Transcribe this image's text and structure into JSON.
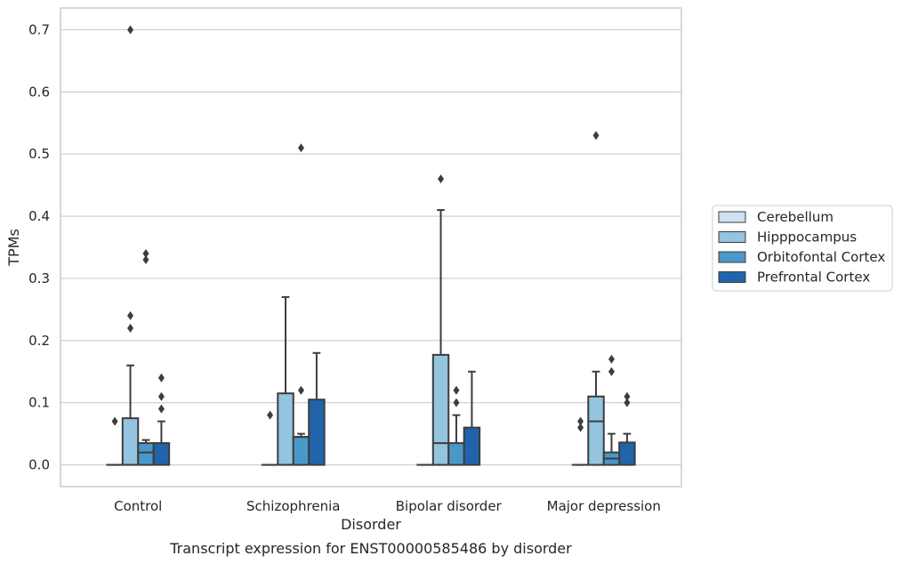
{
  "chart_data": {
    "type": "box",
    "title": "",
    "caption": "Transcript expression for ENST00000585486 by disorder",
    "xlabel": "Disorder",
    "ylabel": "TPMs",
    "ylim": [
      -0.035,
      0.735
    ],
    "yticks": [
      "0.0",
      "0.1",
      "0.2",
      "0.3",
      "0.4",
      "0.5",
      "0.6",
      "0.7"
    ],
    "ytick_values": [
      0,
      0.1,
      0.2,
      0.3,
      0.4,
      0.5,
      0.6,
      0.7
    ],
    "grid": "horizontal",
    "legend_position": "right",
    "categories": [
      "Control",
      "Schizophrenia",
      "Bipolar disorder",
      "Major depression"
    ],
    "series": [
      {
        "name": "Cerebellum",
        "color": "#d0e1f2",
        "boxes": [
          {
            "q1": 0,
            "median": 0,
            "q3": 0,
            "whisker_low": 0,
            "whisker_high": 0,
            "outliers": [
              0.07
            ]
          },
          {
            "q1": 0,
            "median": 0,
            "q3": 0,
            "whisker_low": 0,
            "whisker_high": 0,
            "outliers": [
              0.08
            ]
          },
          {
            "q1": 0,
            "median": 0,
            "q3": 0,
            "whisker_low": 0,
            "whisker_high": 0,
            "outliers": []
          },
          {
            "q1": 0,
            "median": 0,
            "q3": 0,
            "whisker_low": 0,
            "whisker_high": 0,
            "outliers": [
              0.06,
              0.07
            ]
          }
        ]
      },
      {
        "name": "Hipppocampus",
        "color": "#94c4df",
        "boxes": [
          {
            "q1": 0,
            "median": 0,
            "q3": 0.075,
            "whisker_low": 0,
            "whisker_high": 0.16,
            "outliers": [
              0.22,
              0.24,
              0.7
            ]
          },
          {
            "q1": 0,
            "median": 0,
            "q3": 0.115,
            "whisker_low": 0,
            "whisker_high": 0.27,
            "outliers": []
          },
          {
            "q1": 0,
            "median": 0.035,
            "q3": 0.177,
            "whisker_low": 0,
            "whisker_high": 0.41,
            "outliers": [
              0.46
            ]
          },
          {
            "q1": 0,
            "median": 0.07,
            "q3": 0.11,
            "whisker_low": 0,
            "whisker_high": 0.15,
            "outliers": [
              0.53
            ]
          }
        ]
      },
      {
        "name": "Orbitofontal Cortex",
        "color": "#4a98c9",
        "boxes": [
          {
            "q1": 0,
            "median": 0.02,
            "q3": 0.035,
            "whisker_low": 0,
            "whisker_high": 0.04,
            "outliers": [
              0.33,
              0.34
            ]
          },
          {
            "q1": 0,
            "median": 0.045,
            "q3": 0.045,
            "whisker_low": 0,
            "whisker_high": 0.05,
            "outliers": [
              0.12,
              0.51
            ]
          },
          {
            "q1": 0,
            "median": 0,
            "q3": 0.035,
            "whisker_low": 0,
            "whisker_high": 0.08,
            "outliers": [
              0.1,
              0.12
            ]
          },
          {
            "q1": 0,
            "median": 0.01,
            "q3": 0.02,
            "whisker_low": 0,
            "whisker_high": 0.05,
            "outliers": [
              0.15,
              0.17
            ]
          }
        ]
      },
      {
        "name": "Prefrontal Cortex",
        "color": "#2164ab",
        "boxes": [
          {
            "q1": 0,
            "median": 0,
            "q3": 0.035,
            "whisker_low": 0,
            "whisker_high": 0.07,
            "outliers": [
              0.09,
              0.11,
              0.14
            ]
          },
          {
            "q1": 0,
            "median": 0,
            "q3": 0.105,
            "whisker_low": 0,
            "whisker_high": 0.18,
            "outliers": []
          },
          {
            "q1": 0,
            "median": 0,
            "q3": 0.06,
            "whisker_low": 0,
            "whisker_high": 0.15,
            "outliers": []
          },
          {
            "q1": 0,
            "median": 0,
            "q3": 0.036,
            "whisker_low": 0,
            "whisker_high": 0.05,
            "outliers": [
              0.1,
              0.11
            ]
          }
        ]
      }
    ]
  }
}
